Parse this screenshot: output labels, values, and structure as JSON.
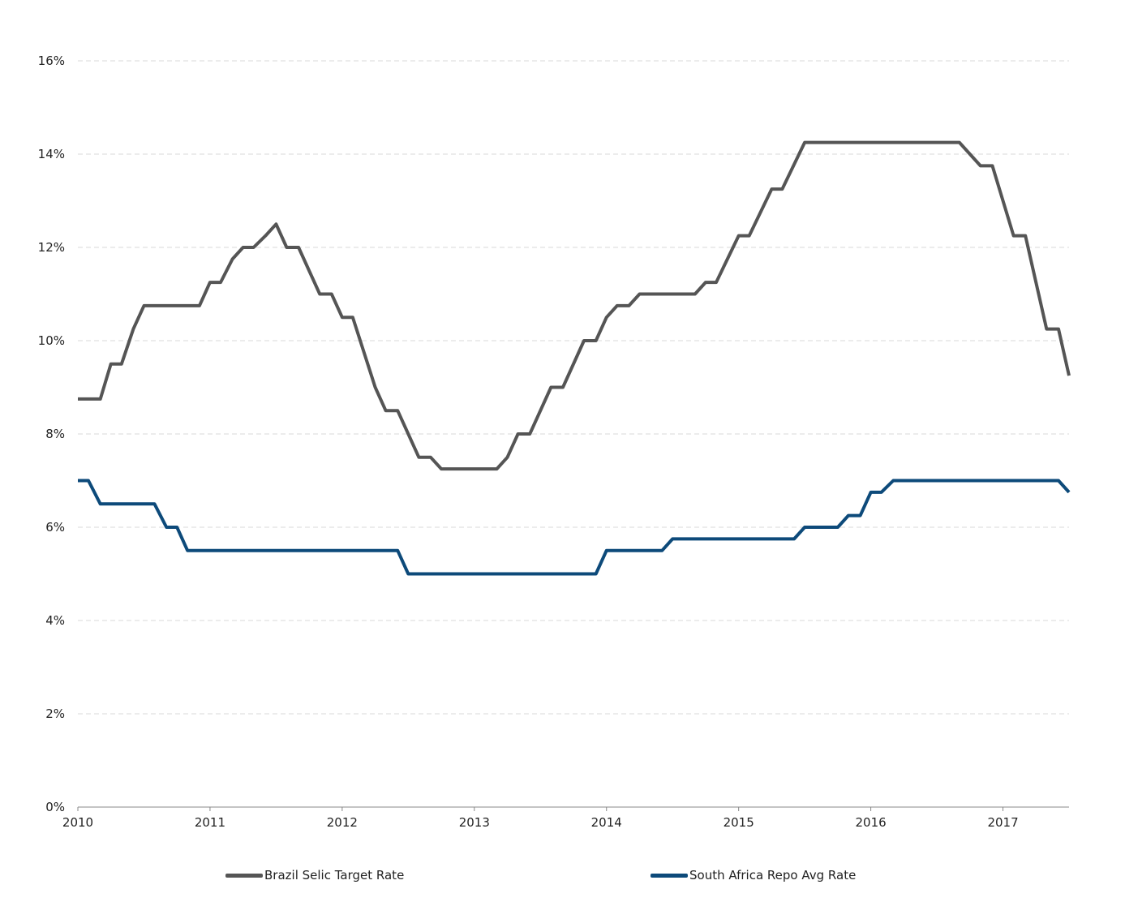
{
  "chart_data": {
    "type": "line",
    "x_ticks": [
      "2010",
      "2011",
      "2012",
      "2013",
      "2014",
      "2015",
      "2016",
      "2017"
    ],
    "y_ticks": [
      "0%",
      "2%",
      "4%",
      "6%",
      "8%",
      "10%",
      "12%",
      "14%",
      "16%"
    ],
    "xlim": [
      2010.0,
      2017.5
    ],
    "ylim": [
      0,
      16
    ],
    "grid": true,
    "legend_position": "bottom",
    "series": [
      {
        "name": "Brazil Selic Target Rate",
        "color": "#555555",
        "points": [
          [
            2010.0,
            8.75
          ],
          [
            2010.17,
            8.75
          ],
          [
            2010.25,
            9.5
          ],
          [
            2010.33,
            9.5
          ],
          [
            2010.42,
            10.25
          ],
          [
            2010.5,
            10.75
          ],
          [
            2010.92,
            10.75
          ],
          [
            2011.0,
            11.25
          ],
          [
            2011.08,
            11.25
          ],
          [
            2011.17,
            11.75
          ],
          [
            2011.25,
            12.0
          ],
          [
            2011.33,
            12.0
          ],
          [
            2011.42,
            12.25
          ],
          [
            2011.5,
            12.5
          ],
          [
            2011.58,
            12.0
          ],
          [
            2011.67,
            12.0
          ],
          [
            2011.83,
            11.0
          ],
          [
            2011.92,
            11.0
          ],
          [
            2012.0,
            10.5
          ],
          [
            2012.08,
            10.5
          ],
          [
            2012.25,
            9.0
          ],
          [
            2012.33,
            8.5
          ],
          [
            2012.42,
            8.5
          ],
          [
            2012.58,
            7.5
          ],
          [
            2012.67,
            7.5
          ],
          [
            2012.75,
            7.25
          ],
          [
            2013.17,
            7.25
          ],
          [
            2013.25,
            7.5
          ],
          [
            2013.33,
            8.0
          ],
          [
            2013.42,
            8.0
          ],
          [
            2013.58,
            9.0
          ],
          [
            2013.67,
            9.0
          ],
          [
            2013.83,
            10.0
          ],
          [
            2013.92,
            10.0
          ],
          [
            2014.0,
            10.5
          ],
          [
            2014.08,
            10.75
          ],
          [
            2014.17,
            10.75
          ],
          [
            2014.25,
            11.0
          ],
          [
            2014.67,
            11.0
          ],
          [
            2014.75,
            11.25
          ],
          [
            2014.83,
            11.25
          ],
          [
            2015.0,
            12.25
          ],
          [
            2015.08,
            12.25
          ],
          [
            2015.25,
            13.25
          ],
          [
            2015.33,
            13.25
          ],
          [
            2015.5,
            14.25
          ],
          [
            2016.67,
            14.25
          ],
          [
            2016.83,
            13.75
          ],
          [
            2016.92,
            13.75
          ],
          [
            2017.08,
            12.25
          ],
          [
            2017.17,
            12.25
          ],
          [
            2017.33,
            10.25
          ],
          [
            2017.42,
            10.25
          ],
          [
            2017.5,
            9.25
          ]
        ]
      },
      {
        "name": "South Africa Repo Avg Rate",
        "color": "#0d4a7a",
        "points": [
          [
            2010.0,
            7.0
          ],
          [
            2010.08,
            7.0
          ],
          [
            2010.17,
            6.5
          ],
          [
            2010.58,
            6.5
          ],
          [
            2010.67,
            6.0
          ],
          [
            2010.75,
            6.0
          ],
          [
            2010.83,
            5.5
          ],
          [
            2012.42,
            5.5
          ],
          [
            2012.5,
            5.0
          ],
          [
            2013.92,
            5.0
          ],
          [
            2014.0,
            5.5
          ],
          [
            2014.42,
            5.5
          ],
          [
            2014.5,
            5.75
          ],
          [
            2015.42,
            5.75
          ],
          [
            2015.5,
            6.0
          ],
          [
            2015.75,
            6.0
          ],
          [
            2015.83,
            6.25
          ],
          [
            2015.92,
            6.25
          ],
          [
            2016.0,
            6.75
          ],
          [
            2016.08,
            6.75
          ],
          [
            2016.17,
            7.0
          ],
          [
            2017.42,
            7.0
          ],
          [
            2017.5,
            6.75
          ]
        ]
      }
    ]
  }
}
